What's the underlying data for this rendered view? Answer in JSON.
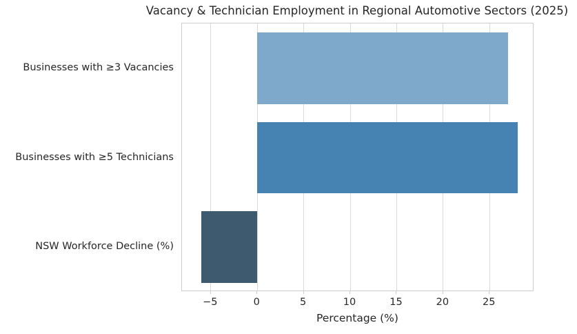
{
  "title": "Vacancy & Technician Employment in Regional Automotive Sectors (2025)",
  "chart_data": {
    "type": "bar",
    "orientation": "horizontal",
    "title": "Vacancy & Technician Employment in Regional Automotive Sectors (2025)",
    "xlabel": "Percentage (%)",
    "ylabel": "",
    "categories": [
      "Businesses with ≥3 Vacancies",
      "Businesses with ≥5 Technicians",
      "NSW Workforce Decline (%)"
    ],
    "values": [
      27,
      28,
      -6
    ],
    "xticks": [
      -5,
      0,
      5,
      10,
      15,
      20,
      25
    ],
    "xlim": [
      -8.1,
      29.8
    ],
    "grid": true,
    "legend": false,
    "bar_colors": [
      "#7fa9cb",
      "#4682b2",
      "#3d5a6e"
    ]
  },
  "colors": {
    "text": "#262626",
    "grid": "#d9d9d9",
    "spine": "#cccccc",
    "background": "#ffffff"
  }
}
